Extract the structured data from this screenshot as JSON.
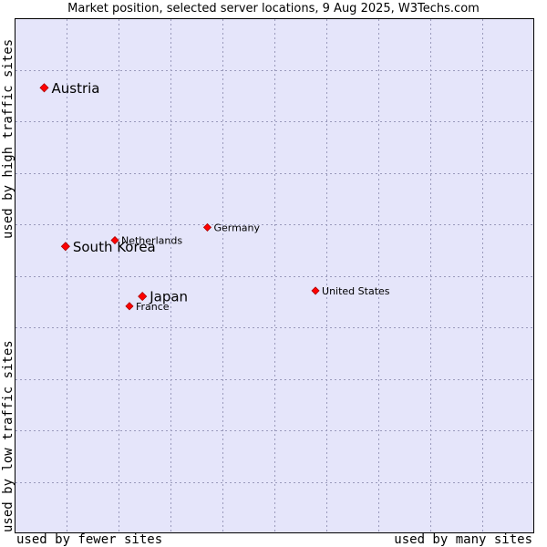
{
  "chart_data": {
    "type": "scatter",
    "title": "Market position, selected server locations, 9 Aug 2025, W3Techs.com",
    "xlabel_low": "used by fewer sites",
    "xlabel_high": "used by many sites",
    "ylabel_low": "used by low traffic sites",
    "ylabel_high": "used by high traffic sites",
    "xlim": [
      0,
      100
    ],
    "ylim": [
      0,
      100
    ],
    "grid": true,
    "points": [
      {
        "label": "Austria",
        "x": 5.7,
        "y": 86.5,
        "size": "large"
      },
      {
        "label": "South Korea",
        "x": 9.8,
        "y": 55.7,
        "size": "large"
      },
      {
        "label": "Netherlands",
        "x": 19.3,
        "y": 56.9,
        "size": "small"
      },
      {
        "label": "Germany",
        "x": 37.1,
        "y": 59.4,
        "size": "small"
      },
      {
        "label": "United States",
        "x": 57.9,
        "y": 47.1,
        "size": "small"
      },
      {
        "label": "Japan",
        "x": 24.6,
        "y": 46.0,
        "size": "large"
      },
      {
        "label": "France",
        "x": 22.1,
        "y": 44.1,
        "size": "small"
      }
    ]
  },
  "colors": {
    "plot_background": "#e5e5fa",
    "grid": "#9999bb",
    "border": "#000000",
    "marker": "#ff0000",
    "marker_stroke": "#aa0000"
  }
}
